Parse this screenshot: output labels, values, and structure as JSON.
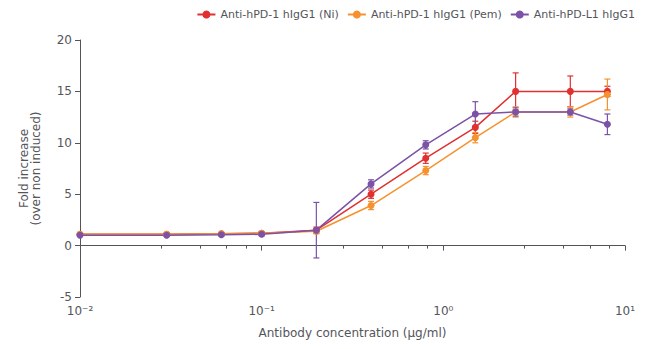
{
  "chart_data": {
    "type": "line",
    "xlabel": "Antibody concentration (μg/ml)",
    "ylabel": "Fold increase\n(over non induced)",
    "log": "x",
    "xlim": [
      0.01,
      10
    ],
    "xticks": [
      {
        "value": 0.01,
        "label": "10⁻²"
      },
      {
        "value": 0.1,
        "label": "10⁻¹"
      },
      {
        "value": 1,
        "label": "10⁰"
      },
      {
        "value": 10,
        "label": "10¹"
      }
    ],
    "ylim": [
      -5,
      20
    ],
    "yticks": [
      -5,
      0,
      5,
      10,
      15,
      20
    ],
    "grid": false,
    "legend": "upper right",
    "marker": "circle",
    "x": [
      0.01,
      0.03,
      0.06,
      0.1,
      0.2,
      0.4,
      0.8,
      1.5,
      2.5,
      5,
      8
    ],
    "series": [
      {
        "name": "Anti-hPD-1 hIgG1 (Ni)",
        "color": "#e03030",
        "values": [
          1.1,
          1.1,
          1.15,
          1.2,
          1.5,
          5.0,
          8.5,
          11.5,
          15.0,
          15.0,
          15.0
        ],
        "yerr": [
          0.1,
          0.1,
          0.1,
          0.15,
          0.3,
          0.4,
          0.5,
          0.6,
          1.8,
          1.5,
          0.5
        ]
      },
      {
        "name": "Anti-hPD-1 hIgG1 (Pem)",
        "color": "#f5922f",
        "values": [
          1.1,
          1.1,
          1.15,
          1.2,
          1.4,
          3.9,
          7.3,
          10.5,
          13.0,
          13.0,
          14.7
        ],
        "yerr": [
          0.1,
          0.1,
          0.1,
          0.15,
          0.25,
          0.4,
          0.4,
          0.5,
          0.5,
          0.5,
          1.5
        ]
      },
      {
        "name": "Anti-hPD-L1 hIgG1",
        "color": "#7b52a6",
        "values": [
          1.0,
          1.0,
          1.05,
          1.1,
          1.5,
          6.0,
          9.8,
          12.8,
          13.0,
          13.0,
          11.8
        ],
        "yerr": [
          0.1,
          0.1,
          0.1,
          0.15,
          2.7,
          0.4,
          0.4,
          1.2,
          0.4,
          0.3,
          1.0
        ]
      }
    ]
  }
}
